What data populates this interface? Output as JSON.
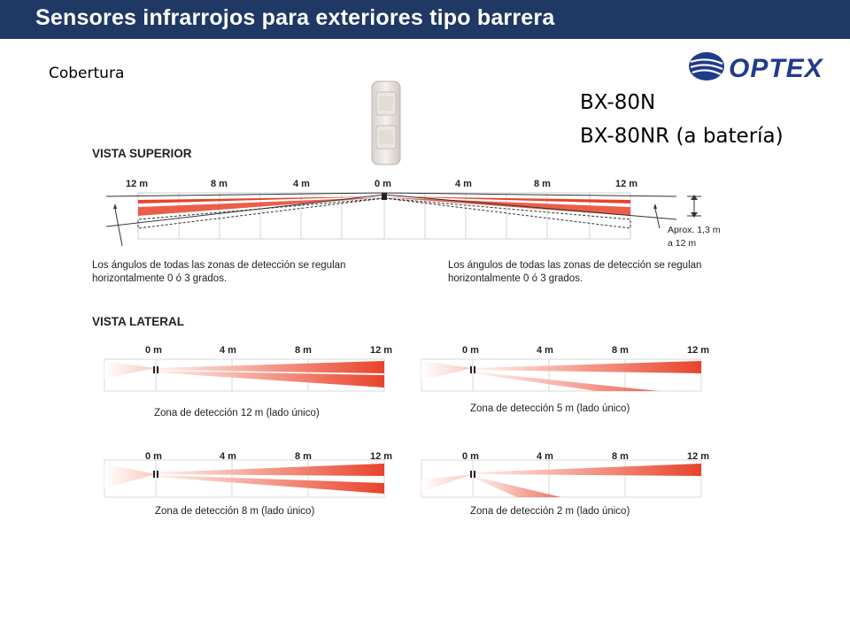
{
  "header": {
    "title": "Sensores infrarrojos para exteriores tipo barrera",
    "subtitle": "Cobertura"
  },
  "logo": {
    "text": "OPTEX",
    "color": "#1f3b8c"
  },
  "models": {
    "line1": "BX-80N",
    "line2": "BX-80NR (a batería)"
  },
  "top_view": {
    "heading": "VISTA SUPERIOR",
    "left_scale": [
      "12 m",
      "8 m",
      "4 m",
      "0 m"
    ],
    "right_scale": [
      "4 m",
      "8 m",
      "12 m"
    ],
    "height_note_line1": "Aprox. 1,3 m",
    "height_note_line2": "a 12 m",
    "note_left_line1": "Los ángulos de todas las zonas de detección se regulan",
    "note_left_line2": "horizontalmente 0 ó 3 grados.",
    "note_right_line1": "Los ángulos de todas las zonas de detección se regulan",
    "note_right_line2": "horizontalmente 0 ó 3 grados."
  },
  "side_view": {
    "heading": "VISTA LATERAL",
    "scale": [
      "0 m",
      "4 m",
      "8 m",
      "12 m"
    ],
    "captions": [
      "Zona de detección 12 m (lado único)",
      "Zona de detección 5 m (lado único)",
      "Zona de detección 8 m (lado único)",
      "Zona de detección 2 m (lado único)"
    ]
  },
  "colors": {
    "title_bar": "#1f3864",
    "beam": "#e8432a",
    "beam_light": "#f8c9bd"
  }
}
